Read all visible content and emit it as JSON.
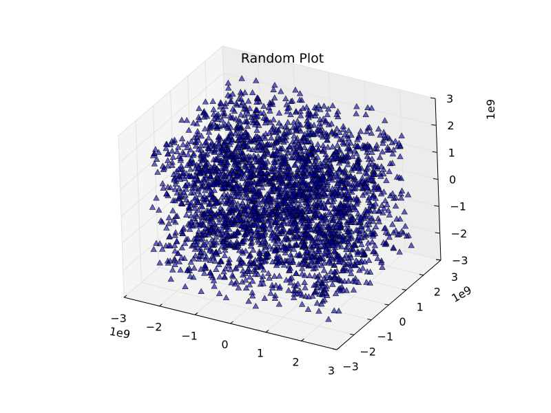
{
  "chart_data": {
    "type": "scatter",
    "projection": "3d",
    "title": "Random Plot",
    "marker": "triangle",
    "marker_color": "#0000aa",
    "marker_edge_color": "#000000",
    "marker_alpha": 0.6,
    "pane_color": "#f2f2f2",
    "grid": true,
    "axes": {
      "x": {
        "range": [
          -3,
          3
        ],
        "ticks": [
          "−3",
          "−2",
          "−1",
          "0",
          "1",
          "2",
          "3"
        ],
        "offset_label": "1e9"
      },
      "y": {
        "range": [
          -3,
          3
        ],
        "ticks": [
          "−3",
          "−2",
          "−1",
          "0",
          "1",
          "2",
          "3"
        ],
        "offset_label": "1e9"
      },
      "z": {
        "range": [
          -3,
          3
        ],
        "ticks": [
          "−3",
          "−2",
          "−1",
          "0",
          "1",
          "2",
          "3"
        ],
        "offset_label": "1e9"
      }
    },
    "data_range": {
      "x": [
        -2.5,
        2.5
      ],
      "y": [
        -2.5,
        2.5
      ],
      "z": [
        -2.5,
        2.5
      ]
    },
    "point_count": 3000,
    "distribution": "uniform"
  }
}
